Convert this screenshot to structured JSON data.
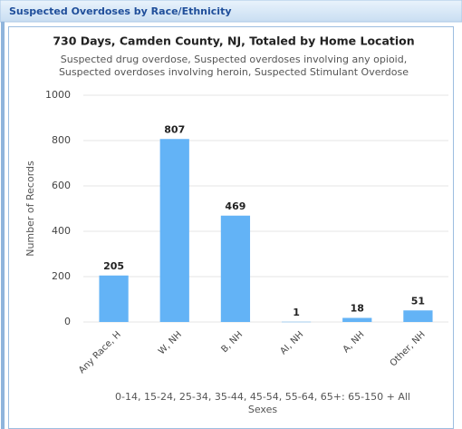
{
  "chart_data": {
    "type": "bar",
    "panel_title": "Suspected Overdoses by Race/Ethnicity",
    "title": "730 Days, Camden County, NJ, Totaled by Home Location",
    "subtitle": [
      "Suspected drug overdose, Suspected overdoses involving any opioid,",
      "Suspected overdoses involving heroin, Suspected Stimulant Overdose"
    ],
    "y_label": "Number of Records",
    "x_label": [
      "0-14, 15-24, 25-34, 35-44, 45-54, 55-64, 65+: 65-150 + All",
      "Sexes"
    ],
    "categories": [
      "Any Race, H",
      "W, NH",
      "B, NH",
      "AI, NH",
      "A, NH",
      "Other, NH"
    ],
    "values": [
      205,
      807,
      469,
      1,
      18,
      51
    ],
    "color": "#63b3f6",
    "ylim": [
      0,
      1000
    ],
    "yticks": [
      0,
      200,
      400,
      600,
      800,
      1000
    ],
    "grid": true
  }
}
